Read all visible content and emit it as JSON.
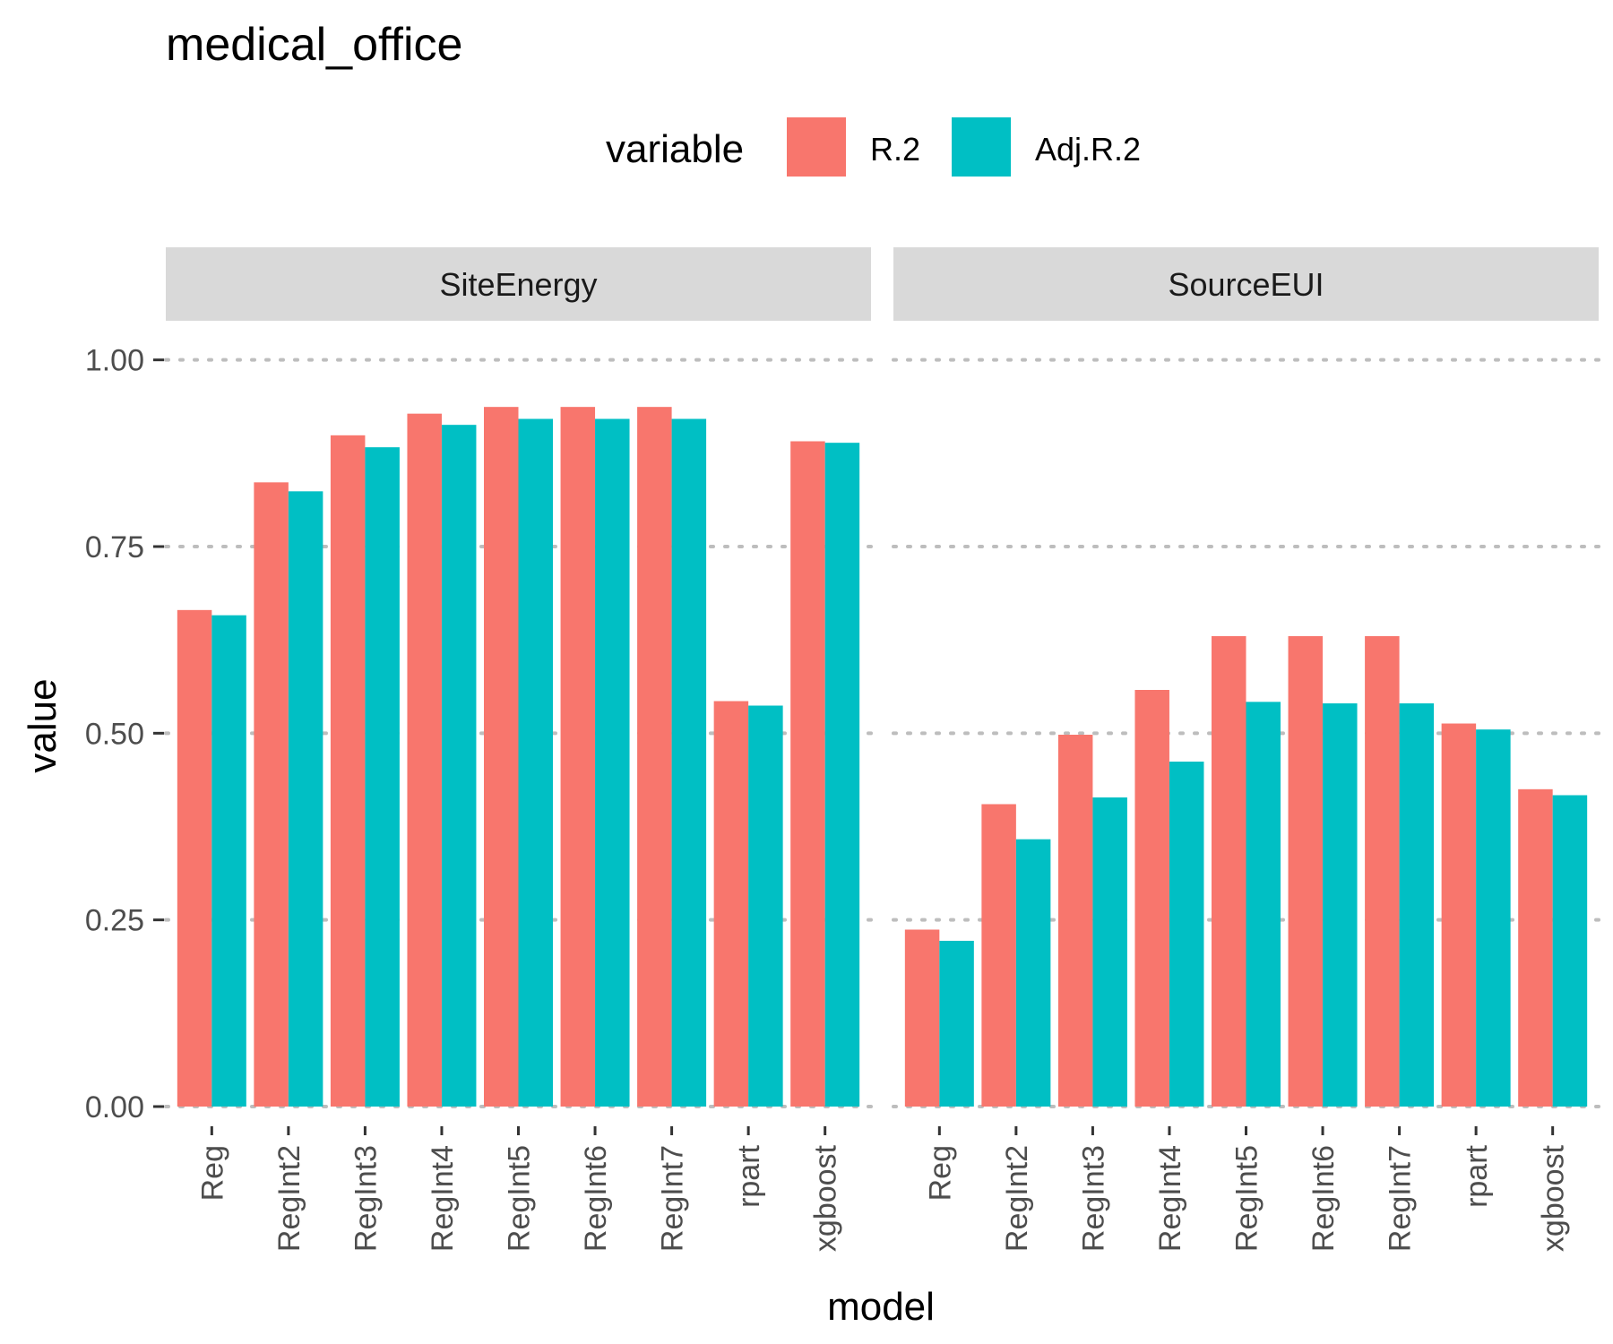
{
  "chart_data": {
    "type": "bar",
    "title": "medical_office",
    "xlabel": "model",
    "ylabel": "value",
    "ylim": [
      0,
      1.05
    ],
    "yticks": [
      0,
      0.25,
      0.5,
      0.75,
      1.0
    ],
    "ytick_labels": [
      "0.00",
      "0.25",
      "0.50",
      "0.75",
      "1.00"
    ],
    "legend": {
      "title": "variable",
      "placement": "top",
      "entries": [
        {
          "name": "R.2",
          "color": "#F8766D"
        },
        {
          "name": "Adj.R.2",
          "color": "#00BFC4"
        }
      ]
    },
    "categories": [
      "Reg",
      "RegInt2",
      "RegInt3",
      "RegInt4",
      "RegInt5",
      "RegInt6",
      "RegInt7",
      "rpart",
      "xgboost"
    ],
    "panels": [
      {
        "name": "SiteEnergy",
        "series": [
          {
            "name": "R.2",
            "color": "#F8766D",
            "values": [
              0.665,
              0.836,
              0.899,
              0.928,
              0.937,
              0.937,
              0.937,
              0.543,
              0.891
            ]
          },
          {
            "name": "Adj.R.2",
            "color": "#00BFC4",
            "values": [
              0.658,
              0.824,
              0.883,
              0.913,
              0.921,
              0.921,
              0.921,
              0.537,
              0.889
            ]
          }
        ]
      },
      {
        "name": "SourceEUI",
        "series": [
          {
            "name": "R.2",
            "color": "#F8766D",
            "values": [
              0.237,
              0.405,
              0.498,
              0.558,
              0.63,
              0.63,
              0.63,
              0.513,
              0.425
            ]
          },
          {
            "name": "Adj.R.2",
            "color": "#00BFC4",
            "values": [
              0.222,
              0.358,
              0.414,
              0.462,
              0.542,
              0.54,
              0.54,
              0.505,
              0.417
            ]
          }
        ]
      }
    ],
    "grid": true
  }
}
